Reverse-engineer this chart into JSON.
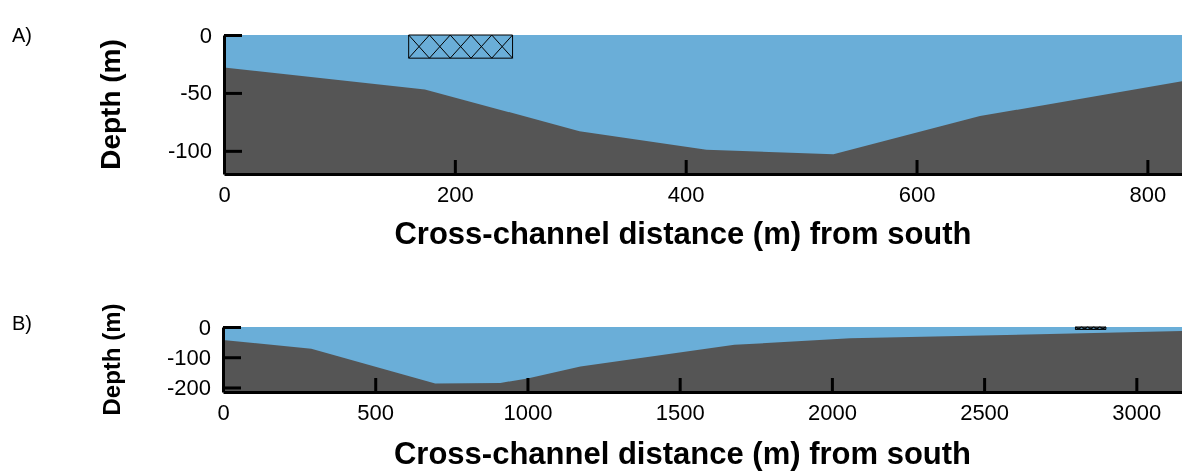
{
  "chart_data": [
    {
      "type": "area",
      "annotations": [
        "A)"
      ],
      "xlabel": "Cross-channel distance (m) from south",
      "ylabel": "Depth (m)",
      "x": [
        0,
        174,
        308,
        418,
        528,
        655,
        830
      ],
      "series": [
        {
          "color": "#6aaed8",
          "values": [
            -28,
            -47,
            -83,
            -99,
            -103,
            -70,
            -40
          ]
        }
      ],
      "bands": [
        {
          "axis": "y",
          "from": -120,
          "to": 0,
          "color": "#555555"
        }
      ],
      "xlim": [
        0,
        830
      ],
      "ylim": [
        -120,
        0
      ],
      "xticks": [
        0,
        200,
        400,
        600,
        800
      ],
      "yticks": [
        0,
        -50,
        -100
      ],
      "grid": false
    },
    {
      "type": "area",
      "annotations": [
        "B)"
      ],
      "xlabel": "Cross-channel distance (m) from south",
      "ylabel": "Depth (m)",
      "x": [
        0,
        290,
        697,
        911,
        1000,
        1174,
        1680,
        2060,
        2716,
        3150
      ],
      "series": [
        {
          "color": "#6aaed8",
          "values": [
            -43,
            -72,
            -187,
            -185,
            -170,
            -131,
            -59,
            -37,
            -23,
            -13
          ]
        }
      ],
      "bands": [
        {
          "axis": "y",
          "from": -215,
          "to": 0,
          "color": "#555555"
        }
      ],
      "xlim": [
        0,
        3150
      ],
      "ylim": [
        -215,
        0
      ],
      "xticks": [
        0,
        500,
        1000,
        1500,
        2000,
        2500,
        3000
      ],
      "yticks": [
        0,
        -100,
        -200
      ],
      "grid": false
    }
  ]
}
